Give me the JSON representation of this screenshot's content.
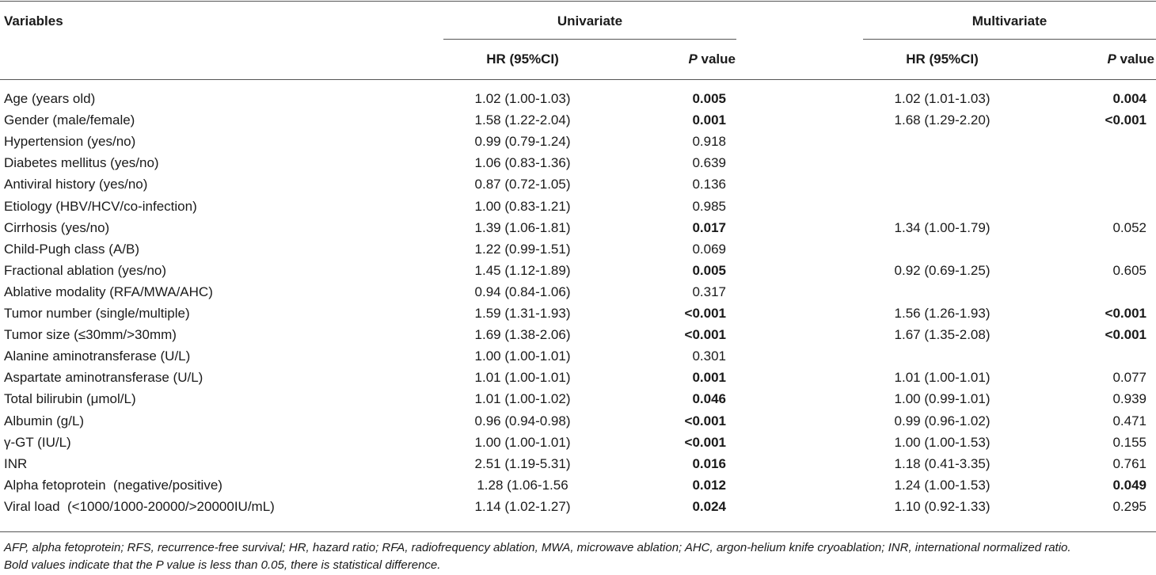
{
  "headers": {
    "variables": "Variables",
    "univariate": "Univariate",
    "multivariate": "Multivariate",
    "hr": "HR (95%CI)",
    "p_italic": "P",
    "p_rest": " value"
  },
  "rows": [
    {
      "var": "Age (years old)",
      "uhr": "1.02 (1.00-1.03)",
      "up": "0.005",
      "up_bold": true,
      "mhr": "1.02 (1.01-1.03)",
      "mp": "0.004",
      "mp_bold": true
    },
    {
      "var": "Gender (male/female)",
      "uhr": "1.58 (1.22-2.04)",
      "up": "0.001",
      "up_bold": true,
      "mhr": "1.68 (1.29-2.20)",
      "mp": "<0.001",
      "mp_bold": true
    },
    {
      "var": "Hypertension (yes/no)",
      "uhr": "0.99 (0.79-1.24)",
      "up": "0.918",
      "up_bold": false,
      "mhr": "",
      "mp": "",
      "mp_bold": false
    },
    {
      "var": "Diabetes mellitus (yes/no)",
      "uhr": "1.06 (0.83-1.36)",
      "up": "0.639",
      "up_bold": false,
      "mhr": "",
      "mp": "",
      "mp_bold": false
    },
    {
      "var": "Antiviral history (yes/no)",
      "uhr": "0.87 (0.72-1.05)",
      "up": "0.136",
      "up_bold": false,
      "mhr": "",
      "mp": "",
      "mp_bold": false
    },
    {
      "var": "Etiology (HBV/HCV/co-infection)",
      "uhr": "1.00 (0.83-1.21)",
      "up": "0.985",
      "up_bold": false,
      "mhr": "",
      "mp": "",
      "mp_bold": false
    },
    {
      "var": "Cirrhosis (yes/no)",
      "uhr": "1.39 (1.06-1.81)",
      "up": "0.017",
      "up_bold": true,
      "mhr": "1.34 (1.00-1.79)",
      "mp": "0.052",
      "mp_bold": false
    },
    {
      "var": "Child-Pugh class (A/B)",
      "uhr": "1.22 (0.99-1.51)",
      "up": "0.069",
      "up_bold": false,
      "mhr": "",
      "mp": "",
      "mp_bold": false
    },
    {
      "var": "Fractional ablation (yes/no)",
      "uhr": "1.45 (1.12-1.89)",
      "up": "0.005",
      "up_bold": true,
      "mhr": "0.92 (0.69-1.25)",
      "mp": "0.605",
      "mp_bold": false
    },
    {
      "var": "Ablative modality (RFA/MWA/AHC)",
      "uhr": "0.94 (0.84-1.06)",
      "up": "0.317",
      "up_bold": false,
      "mhr": "",
      "mp": "",
      "mp_bold": false
    },
    {
      "var": "Tumor number (single/multiple)",
      "uhr": "1.59 (1.31-1.93)",
      "up": "<0.001",
      "up_bold": true,
      "mhr": "1.56 (1.26-1.93)",
      "mp": "<0.001",
      "mp_bold": true
    },
    {
      "var": "Tumor size (≤30mm/>30mm)",
      "uhr": "1.69 (1.38-2.06)",
      "up": "<0.001",
      "up_bold": true,
      "mhr": "1.67 (1.35-2.08)",
      "mp": "<0.001",
      "mp_bold": true
    },
    {
      "var": "Alanine aminotransferase (U/L)",
      "uhr": "1.00 (1.00-1.01)",
      "up": "0.301",
      "up_bold": false,
      "mhr": "",
      "mp": "",
      "mp_bold": false
    },
    {
      "var": "Aspartate aminotransferase (U/L)",
      "uhr": "1.01 (1.00-1.01)",
      "up": "0.001",
      "up_bold": true,
      "mhr": "1.01 (1.00-1.01)",
      "mp": "0.077",
      "mp_bold": false
    },
    {
      "var": "Total bilirubin (μmol/L)",
      "uhr": "1.01 (1.00-1.02)",
      "up": "0.046",
      "up_bold": true,
      "mhr": "1.00 (0.99-1.01)",
      "mp": "0.939",
      "mp_bold": false
    },
    {
      "var": "Albumin (g/L)",
      "uhr": "0.96 (0.94-0.98)",
      "up": "<0.001",
      "up_bold": true,
      "mhr": "0.99 (0.96-1.02)",
      "mp": "0.471",
      "mp_bold": false
    },
    {
      "var": "γ-GT (IU/L)",
      "uhr": "1.00 (1.00-1.01)",
      "up": "<0.001",
      "up_bold": true,
      "mhr": "1.00 (1.00-1.53)",
      "mp": "0.155",
      "mp_bold": false
    },
    {
      "var": "INR",
      "uhr": "2.51 (1.19-5.31)",
      "up": "0.016",
      "up_bold": true,
      "mhr": "1.18 (0.41-3.35)",
      "mp": "0.761",
      "mp_bold": false
    },
    {
      "var": "Alpha fetoprotein  (negative/positive)",
      "uhr": "1.28 (1.06-1.56",
      "up": "0.012",
      "up_bold": true,
      "mhr": "1.24 (1.00-1.53)",
      "mp": "0.049",
      "mp_bold": true
    },
    {
      "var": "Viral load  (<1000/1000-20000/>20000IU/mL)",
      "uhr": "1.14 (1.02-1.27)",
      "up": "0.024",
      "up_bold": true,
      "mhr": "1.10 (0.92-1.33)",
      "mp": "0.295",
      "mp_bold": false
    }
  ],
  "footnotes": {
    "line1": "AFP, alpha fetoprotein; RFS, recurrence-free survival; HR, hazard ratio; RFA, radiofrequency ablation, MWA, microwave ablation; AHC, argon-helium knife cryoablation; INR, international normalized ratio.",
    "line2": "Bold values indicate that the P value is less than 0.05, there is statistical difference."
  }
}
